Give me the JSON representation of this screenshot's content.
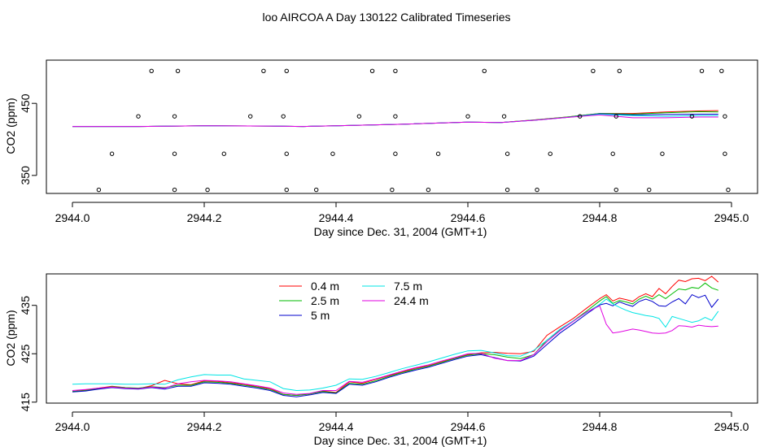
{
  "title": "loo AIRCOA A  Day 130122  Calibrated Timeseries",
  "colors": {
    "0.4 m": "#ff0000",
    "2.5 m": "#00bb00",
    "5 m": "#0000cc",
    "7.5 m": "#00e5e5",
    "24.4 m": "#e000e0",
    "axis": "#000000",
    "points": "#000000"
  },
  "chart_data": [
    {
      "type": "line",
      "xlabel": "Day since Dec. 31, 2004 (GMT+1)",
      "ylabel": "CO2 (ppm)",
      "xlim": [
        2944.0,
        2945.0
      ],
      "ylim": [
        325,
        510
      ],
      "xticks": [
        2944.0,
        2944.2,
        2944.4,
        2944.6,
        2944.8,
        2945.0
      ],
      "xtick_labels": [
        "2944.0",
        "2944.2",
        "2944.4",
        "2944.6",
        "2944.8",
        "2945.0"
      ],
      "yticks": [
        350,
        450
      ],
      "ytick_labels": [
        "350",
        "450"
      ],
      "grid": false,
      "points": {
        "x": [
          2944.04,
          2944.06,
          2944.1,
          2944.12,
          2944.155,
          2944.155,
          2944.155,
          2944.16,
          2944.205,
          2944.23,
          2944.27,
          2944.29,
          2944.32,
          2944.325,
          2944.325,
          2944.325,
          2944.37,
          2944.395,
          2944.435,
          2944.455,
          2944.485,
          2944.49,
          2944.49,
          2944.49,
          2944.54,
          2944.555,
          2944.6,
          2944.625,
          2944.655,
          2944.66,
          2944.66,
          2944.705,
          2944.725,
          2944.77,
          2944.79,
          2944.82,
          2944.825,
          2944.825,
          2944.83,
          2944.875,
          2944.895,
          2944.94,
          2944.955,
          2944.985,
          2944.99,
          2944.99,
          2944.995
        ],
        "y": [
          330,
          380,
          432,
          495,
          330,
          380,
          432,
          495,
          330,
          380,
          432,
          495,
          432,
          330,
          380,
          495,
          330,
          380,
          432,
          495,
          330,
          380,
          432,
          495,
          330,
          380,
          432,
          495,
          432,
          380,
          330,
          330,
          380,
          432,
          495,
          380,
          330,
          432,
          495,
          330,
          380,
          432,
          495,
          495,
          432,
          380,
          330
        ]
      },
      "x": [
        2944.0,
        2944.1,
        2944.2,
        2944.3,
        2944.35,
        2944.4,
        2944.5,
        2944.6,
        2944.65,
        2944.7,
        2944.75,
        2944.8,
        2944.85,
        2944.9,
        2944.95,
        2944.98
      ],
      "series": [
        {
          "name": "0.4 m",
          "values": [
            418,
            418,
            419,
            418.5,
            418,
            419,
            421,
            424,
            423.5,
            427,
            431,
            436,
            436,
            438,
            439.5,
            440
          ]
        },
        {
          "name": "2.5 m",
          "values": [
            418,
            418,
            419,
            418.5,
            418,
            419,
            421,
            424,
            423.5,
            427,
            431,
            436,
            435,
            437,
            438.5,
            438
          ]
        },
        {
          "name": "5 m",
          "values": [
            418,
            418,
            419,
            418.5,
            418,
            419,
            421,
            424,
            423.5,
            426.5,
            430.5,
            435.5,
            434,
            434.5,
            435,
            435
          ]
        },
        {
          "name": "7.5 m",
          "values": [
            418,
            418,
            419,
            418.5,
            418,
            419,
            421,
            424,
            423.5,
            426.5,
            430.5,
            435,
            433,
            432,
            433,
            433
          ]
        },
        {
          "name": "24.4 m",
          "values": [
            418,
            418,
            419,
            418.5,
            418,
            419,
            421,
            424,
            423.5,
            426.5,
            430.5,
            434,
            430,
            430,
            431,
            431
          ]
        }
      ]
    },
    {
      "type": "line",
      "xlabel": "Day since Dec. 31, 2004 (GMT+1)",
      "ylabel": "CO2 (ppm)",
      "xlim": [
        2944.0,
        2945.0
      ],
      "ylim": [
        414.8,
        441.5
      ],
      "xticks": [
        2944.0,
        2944.2,
        2944.4,
        2944.6,
        2944.8,
        2945.0
      ],
      "xtick_labels": [
        "2944.0",
        "2944.2",
        "2944.4",
        "2944.6",
        "2944.8",
        "2945.0"
      ],
      "yticks": [
        415,
        425,
        435
      ],
      "ytick_labels": [
        "415",
        "425",
        "435"
      ],
      "grid": false,
      "legend_position": "top-center",
      "x": [
        2944.0,
        2944.02,
        2944.04,
        2944.06,
        2944.08,
        2944.1,
        2944.12,
        2944.14,
        2944.16,
        2944.18,
        2944.2,
        2944.22,
        2944.24,
        2944.26,
        2944.28,
        2944.3,
        2944.32,
        2944.34,
        2944.36,
        2944.38,
        2944.4,
        2944.42,
        2944.44,
        2944.46,
        2944.48,
        2944.5,
        2944.52,
        2944.54,
        2944.56,
        2944.58,
        2944.6,
        2944.62,
        2944.64,
        2944.66,
        2944.68,
        2944.7,
        2944.72,
        2944.74,
        2944.76,
        2944.78,
        2944.8,
        2944.81,
        2944.82,
        2944.83,
        2944.84,
        2944.85,
        2944.86,
        2944.87,
        2944.88,
        2944.89,
        2944.9,
        2944.91,
        2944.92,
        2944.93,
        2944.94,
        2944.95,
        2944.96,
        2944.97,
        2944.98
      ],
      "series": [
        {
          "name": "0.4 m",
          "values": [
            417.2,
            417.5,
            417.9,
            418.3,
            418.0,
            417.8,
            418.4,
            419.5,
            418.8,
            418.6,
            419.4,
            419.3,
            419.0,
            418.7,
            418.2,
            417.8,
            416.6,
            416.4,
            416.7,
            417.3,
            417.0,
            419.2,
            418.9,
            419.7,
            420.5,
            421.2,
            422.0,
            422.5,
            423.3,
            424.1,
            424.8,
            425.2,
            425.3,
            425.1,
            425.0,
            425.5,
            428.8,
            430.6,
            432.3,
            434.4,
            436.4,
            437.2,
            435.9,
            436.5,
            436.2,
            435.8,
            436.8,
            437.4,
            436.8,
            438.5,
            437.4,
            438.9,
            440.2,
            439.9,
            440.5,
            440.6,
            440.1,
            441.0,
            439.8
          ]
        },
        {
          "name": "2.5 m",
          "values": [
            417.2,
            417.4,
            417.8,
            418.2,
            418.0,
            417.9,
            418.2,
            418.0,
            418.5,
            418.5,
            419.2,
            419.1,
            418.9,
            418.5,
            418.1,
            417.6,
            416.6,
            416.4,
            416.7,
            417.2,
            416.9,
            418.9,
            418.7,
            419.4,
            420.3,
            421.1,
            421.8,
            422.4,
            423.2,
            424.0,
            424.7,
            425.0,
            424.8,
            424.3,
            424.0,
            424.8,
            427.8,
            429.9,
            431.8,
            433.8,
            435.9,
            436.8,
            435.4,
            436.0,
            435.7,
            435.3,
            436.3,
            436.9,
            436.3,
            437.2,
            436.4,
            437.4,
            438.4,
            438.2,
            438.7,
            438.5,
            439.6,
            438.6,
            438.1
          ]
        },
        {
          "name": "5 m",
          "values": [
            417.1,
            417.3,
            417.7,
            418.0,
            417.8,
            417.7,
            418.0,
            417.7,
            418.3,
            418.3,
            419.0,
            418.9,
            418.7,
            418.3,
            417.9,
            417.4,
            416.4,
            416.1,
            416.5,
            417.0,
            416.8,
            418.7,
            418.5,
            419.2,
            420.1,
            420.9,
            421.6,
            422.2,
            423.0,
            423.8,
            424.5,
            424.8,
            424.2,
            423.6,
            423.5,
            424.5,
            426.9,
            429.3,
            431.2,
            433.2,
            435.1,
            435.4,
            434.9,
            435.7,
            435.2,
            434.8,
            435.8,
            436.3,
            435.8,
            434.9,
            434.8,
            435.7,
            436.4,
            435.3,
            437.2,
            436.6,
            437.1,
            434.6,
            436.3
          ]
        },
        {
          "name": "7.5 m",
          "values": [
            418.7,
            418.8,
            418.8,
            418.8,
            418.7,
            418.7,
            418.8,
            418.7,
            419.6,
            420.2,
            420.7,
            420.6,
            420.6,
            419.8,
            419.5,
            419.2,
            417.8,
            417.4,
            417.5,
            417.9,
            418.5,
            419.8,
            419.7,
            420.3,
            421.1,
            421.9,
            422.6,
            423.3,
            424.1,
            424.9,
            425.6,
            425.7,
            425.2,
            424.6,
            424.5,
            425.7,
            427.8,
            430.1,
            431.8,
            433.5,
            435.2,
            436.3,
            435.3,
            434.6,
            434.0,
            433.5,
            433.2,
            432.9,
            432.7,
            432.3,
            430.5,
            432.7,
            432.3,
            431.9,
            431.5,
            431.8,
            432.5,
            431.9,
            433.8
          ]
        },
        {
          "name": "24.4 m",
          "values": [
            417.4,
            417.6,
            417.9,
            418.1,
            417.9,
            417.8,
            418.1,
            417.9,
            418.8,
            419.2,
            419.5,
            419.4,
            419.2,
            418.8,
            418.4,
            417.9,
            416.9,
            416.6,
            416.8,
            417.4,
            417.4,
            419.3,
            419.1,
            419.8,
            420.6,
            421.4,
            422.1,
            422.7,
            423.5,
            424.2,
            425.0,
            425.1,
            424.1,
            423.6,
            423.6,
            424.8,
            427.5,
            429.8,
            431.7,
            433.6,
            434.9,
            431.1,
            429.3,
            429.5,
            429.8,
            430.1,
            429.9,
            429.6,
            429.3,
            429.2,
            429.3,
            429.8,
            430.8,
            430.7,
            430.5,
            430.9,
            430.7,
            430.6,
            430.7
          ]
        }
      ]
    }
  ]
}
